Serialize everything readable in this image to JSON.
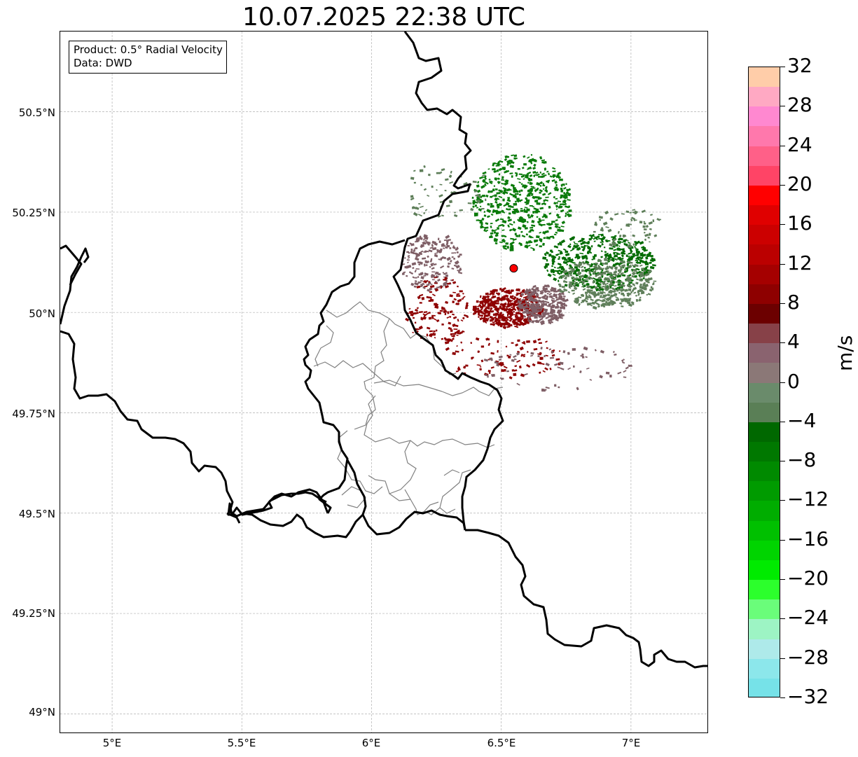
{
  "title": "10.07.2025 22:38 UTC",
  "info_box": {
    "product": "Product: 0.5° Radial Velocity",
    "data": "Data: DWD"
  },
  "axes": {
    "lon_ticks": [
      "5°E",
      "5.5°E",
      "6°E",
      "6.5°E",
      "7°E"
    ],
    "lat_ticks": [
      "50.5°N",
      "50.25°N",
      "50°N",
      "49.75°N",
      "49.5°N",
      "49.25°N",
      "49°N"
    ],
    "lon_range": [
      4.8,
      7.3
    ],
    "lat_range": [
      48.95,
      50.7
    ],
    "grid": true
  },
  "radar_site": {
    "lon": 6.548,
    "lat": 50.11,
    "marker_color": "#ff0000"
  },
  "colorbar": {
    "label": "m/s",
    "tick_labels": [
      "32",
      "28",
      "24",
      "20",
      "16",
      "12",
      "8",
      "4",
      "0",
      "−4",
      "−8",
      "−12",
      "−16",
      "−20",
      "−24",
      "−28",
      "−32"
    ],
    "range": [
      -32,
      32
    ],
    "colors_top_to_bottom": [
      "#ffcda9",
      "#ffa9c3",
      "#ff88d0",
      "#ff78ac",
      "#ff6088",
      "#ff4466",
      "#ff0000",
      "#e00000",
      "#cc0000",
      "#bb0000",
      "#a50000",
      "#8e0000",
      "#6c0000",
      "#874148",
      "#8a636f",
      "#8b7877",
      "#6a8b6b",
      "#5a7f56",
      "#006800",
      "#007800",
      "#008a00",
      "#009b00",
      "#00ad00",
      "#00c000",
      "#00d400",
      "#00eb00",
      "#2cff2c",
      "#6afd7a",
      "#9df4c4",
      "#aeeaea",
      "#8ce7eb",
      "#76e2e8"
    ]
  },
  "colors": {
    "border": "#000000",
    "subdivision": "#808080",
    "grid": "#b0b0b0",
    "inbound_green": "#0a7a0a",
    "outbound_red": "#8e0000",
    "near_zero_brown": "#7f5f66",
    "near_zero_green": "#5f7f5a"
  }
}
